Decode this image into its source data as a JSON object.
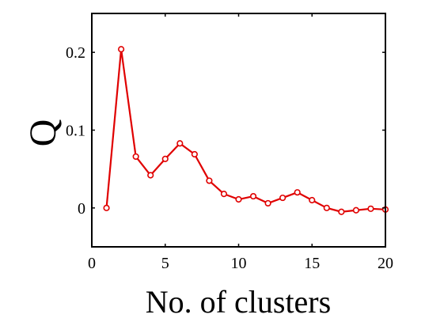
{
  "chart_data": {
    "type": "line",
    "title": "",
    "xlabel": "No. of clusters",
    "ylabel": "Q",
    "xlim": [
      0,
      20
    ],
    "ylim": [
      -0.05,
      0.25
    ],
    "xticks": [
      0,
      5,
      10,
      15,
      20
    ],
    "xtick_labels": [
      "0",
      "5",
      "10",
      "15",
      "20"
    ],
    "yticks": [
      0,
      0.1,
      0.2
    ],
    "ytick_labels": [
      "0",
      "0.1",
      "0.2"
    ],
    "grid": false,
    "legend": "none",
    "series": [
      {
        "color": "#e00000",
        "marker": "circle",
        "x": [
          1,
          2,
          3,
          4,
          5,
          6,
          7,
          8,
          9,
          10,
          11,
          12,
          13,
          14,
          15,
          16,
          17,
          18,
          19,
          20
        ],
        "y": [
          0.0,
          0.204,
          0.066,
          0.042,
          0.063,
          0.083,
          0.069,
          0.035,
          0.018,
          0.011,
          0.015,
          0.006,
          0.013,
          0.02,
          0.01,
          0.0,
          -0.005,
          -0.003,
          -0.001,
          -0.002
        ]
      }
    ]
  }
}
